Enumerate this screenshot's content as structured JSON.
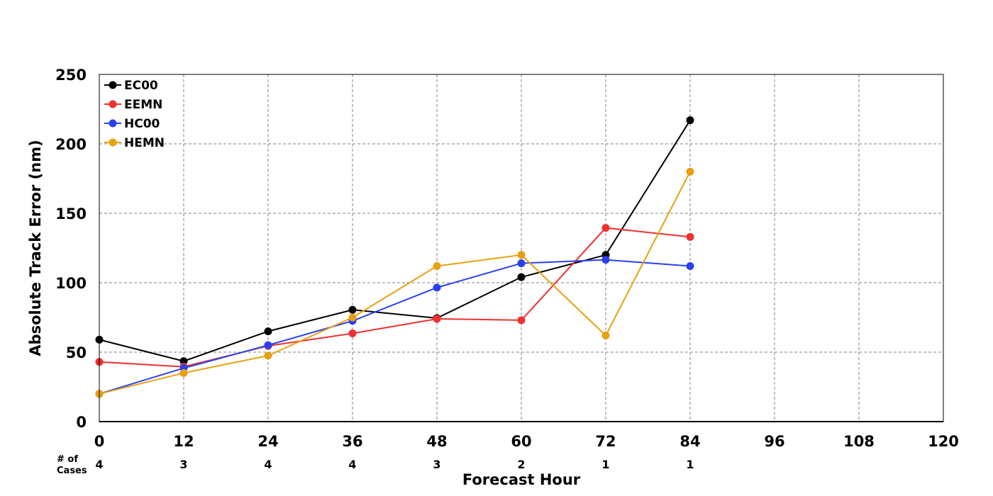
{
  "chart_data": {
    "type": "line",
    "xlabel": "Forecast Hour",
    "ylabel": "Absolute Track Error (nm)",
    "xlim": [
      0,
      120
    ],
    "ylim": [
      0,
      250
    ],
    "x_ticks": [
      0,
      12,
      24,
      36,
      48,
      60,
      72,
      84,
      96,
      108,
      120
    ],
    "y_ticks": [
      0,
      50,
      100,
      150,
      200,
      250
    ],
    "grid": true,
    "legend_placement": "top-left",
    "cases_label": [
      "# of",
      "Cases"
    ],
    "cases": [
      {
        "x": 0,
        "count": "4"
      },
      {
        "x": 12,
        "count": "3"
      },
      {
        "x": 24,
        "count": "4"
      },
      {
        "x": 36,
        "count": "4"
      },
      {
        "x": 48,
        "count": "3"
      },
      {
        "x": 60,
        "count": "2"
      },
      {
        "x": 72,
        "count": "1"
      },
      {
        "x": 84,
        "count": "1"
      }
    ],
    "x": [
      0,
      12,
      24,
      36,
      48,
      60,
      72,
      84
    ],
    "series": [
      {
        "name": "EC00",
        "color": "#000000",
        "values": [
          59,
          43.5,
          65,
          80.5,
          74.5,
          104,
          120,
          217
        ]
      },
      {
        "name": "EEMN",
        "color": "#f03030",
        "values": [
          43,
          39.5,
          54.5,
          63.5,
          74,
          73,
          139.5,
          133
        ]
      },
      {
        "name": "HC00",
        "color": "#2a40f0",
        "values": [
          20,
          38.5,
          55,
          72.5,
          96.5,
          114,
          116.5,
          112
        ]
      },
      {
        "name": "HEMN",
        "color": "#e8a010",
        "values": [
          20,
          35,
          47.5,
          75,
          112,
          120,
          62,
          180
        ]
      }
    ]
  }
}
